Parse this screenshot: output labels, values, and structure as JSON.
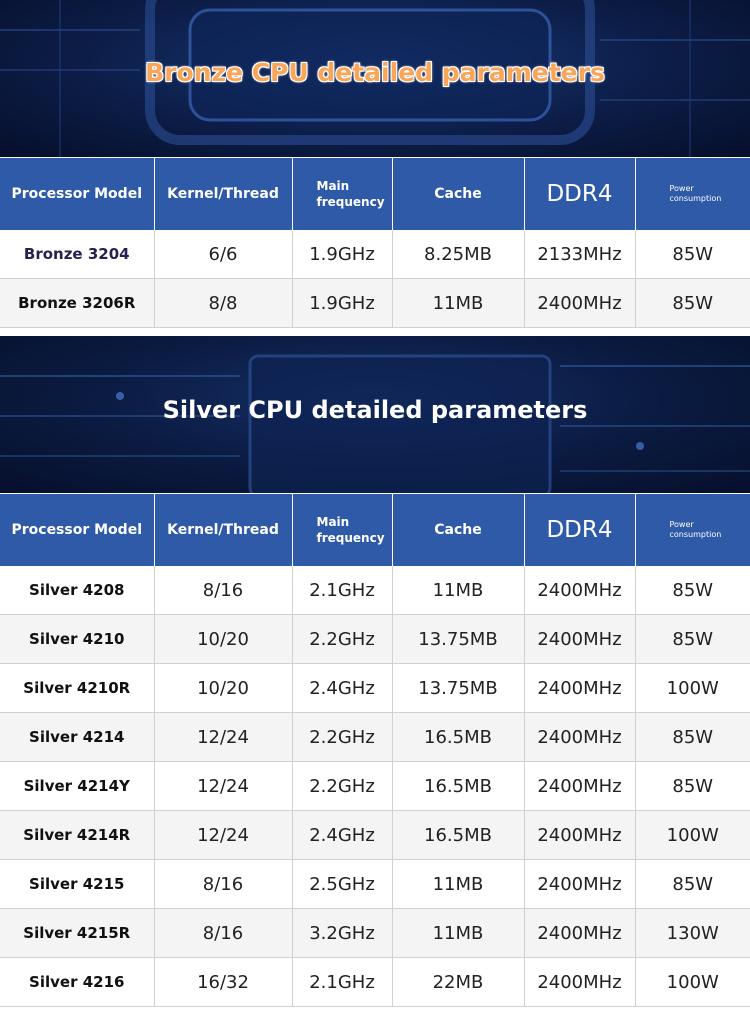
{
  "bronze": {
    "title": "Bronze CPU detailed parameters",
    "headers": {
      "model": "Processor Model",
      "kernel": "Kernel/Thread",
      "freq_line1": "Main",
      "freq_line2": "frequency",
      "cache": "Cache",
      "ddr": "DDR4",
      "power_line1": "Power",
      "power_line2": "consumption"
    },
    "rows": [
      {
        "model": "Bronze 3204",
        "kernel": "6/6",
        "freq": "1.9GHz",
        "cache": "8.25MB",
        "ddr": "2133MHz",
        "power": "85W"
      },
      {
        "model": "Bronze 3206R",
        "kernel": "8/8",
        "freq": "1.9GHz",
        "cache": "11MB",
        "ddr": "2400MHz",
        "power": "85W"
      }
    ]
  },
  "silver": {
    "title": "Silver CPU detailed parameters",
    "headers": {
      "model": "Processor Model",
      "kernel": "Kernel/Thread",
      "freq_line1": "Main",
      "freq_line2": "frequency",
      "cache": "Cache",
      "ddr": "DDR4",
      "power_line1": "Power",
      "power_line2": "consumption"
    },
    "rows": [
      {
        "model": "Silver 4208",
        "kernel": "8/16",
        "freq": "2.1GHz",
        "cache": "11MB",
        "ddr": "2400MHz",
        "power": "85W"
      },
      {
        "model": "Silver 4210",
        "kernel": "10/20",
        "freq": "2.2GHz",
        "cache": "13.75MB",
        "ddr": "2400MHz",
        "power": "85W"
      },
      {
        "model": "Silver 4210R",
        "kernel": "10/20",
        "freq": "2.4GHz",
        "cache": "13.75MB",
        "ddr": "2400MHz",
        "power": "100W"
      },
      {
        "model": "Silver 4214",
        "kernel": "12/24",
        "freq": "2.2GHz",
        "cache": "16.5MB",
        "ddr": "2400MHz",
        "power": "85W"
      },
      {
        "model": "Silver 4214Y",
        "kernel": "12/24",
        "freq": "2.2GHz",
        "cache": "16.5MB",
        "ddr": "2400MHz",
        "power": "85W"
      },
      {
        "model": "Silver 4214R",
        "kernel": "12/24",
        "freq": "2.4GHz",
        "cache": "16.5MB",
        "ddr": "2400MHz",
        "power": "100W"
      },
      {
        "model": "Silver 4215",
        "kernel": "8/16",
        "freq": "2.5GHz",
        "cache": "11MB",
        "ddr": "2400MHz",
        "power": "85W"
      },
      {
        "model": "Silver 4215R",
        "kernel": "8/16",
        "freq": "3.2GHz",
        "cache": "11MB",
        "ddr": "2400MHz",
        "power": "130W"
      },
      {
        "model": "Silver 4216",
        "kernel": "16/32",
        "freq": "2.1GHz",
        "cache": "22MB",
        "ddr": "2400MHz",
        "power": "100W"
      }
    ]
  },
  "colors": {
    "header_bg": "#2e5aa8",
    "banner_bg": "#0c1d47",
    "bronze_title": "#f7a65a"
  }
}
